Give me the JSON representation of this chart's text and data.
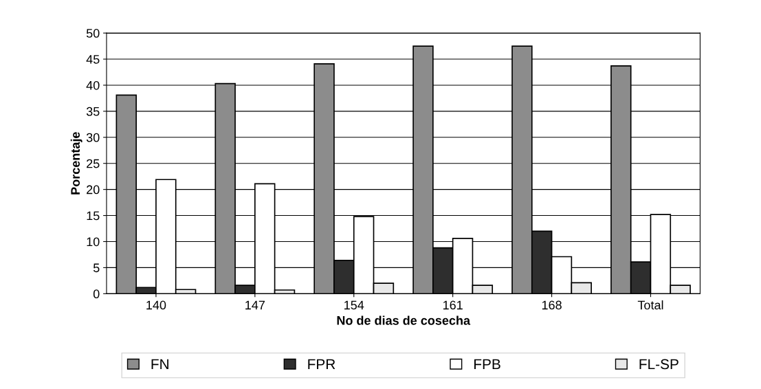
{
  "chart_data": {
    "type": "bar",
    "xlabel": "No de dias de cosecha",
    "ylabel": "Porcentaje",
    "categories": [
      "140",
      "147",
      "154",
      "161",
      "168",
      "Total"
    ],
    "series": [
      {
        "name": "FN",
        "color": "#8c8c8c",
        "values": [
          38.1,
          40.3,
          44.1,
          47.5,
          47.5,
          43.7
        ]
      },
      {
        "name": "FPR",
        "color": "#2e2e2e",
        "values": [
          1.2,
          1.6,
          6.4,
          8.8,
          12.0,
          6.1
        ]
      },
      {
        "name": "FPB",
        "color": "#ffffff",
        "values": [
          21.9,
          21.1,
          14.8,
          10.6,
          7.1,
          15.2
        ]
      },
      {
        "name": "FL-SP",
        "color": "#e8e8e8",
        "values": [
          0.8,
          0.7,
          2.0,
          1.6,
          2.1,
          1.6
        ]
      }
    ],
    "ylim": [
      0,
      50
    ],
    "yticks": [
      0,
      5,
      10,
      15,
      20,
      25,
      30,
      35,
      40,
      45,
      50
    ],
    "grid": "y",
    "legend": "bottom"
  }
}
